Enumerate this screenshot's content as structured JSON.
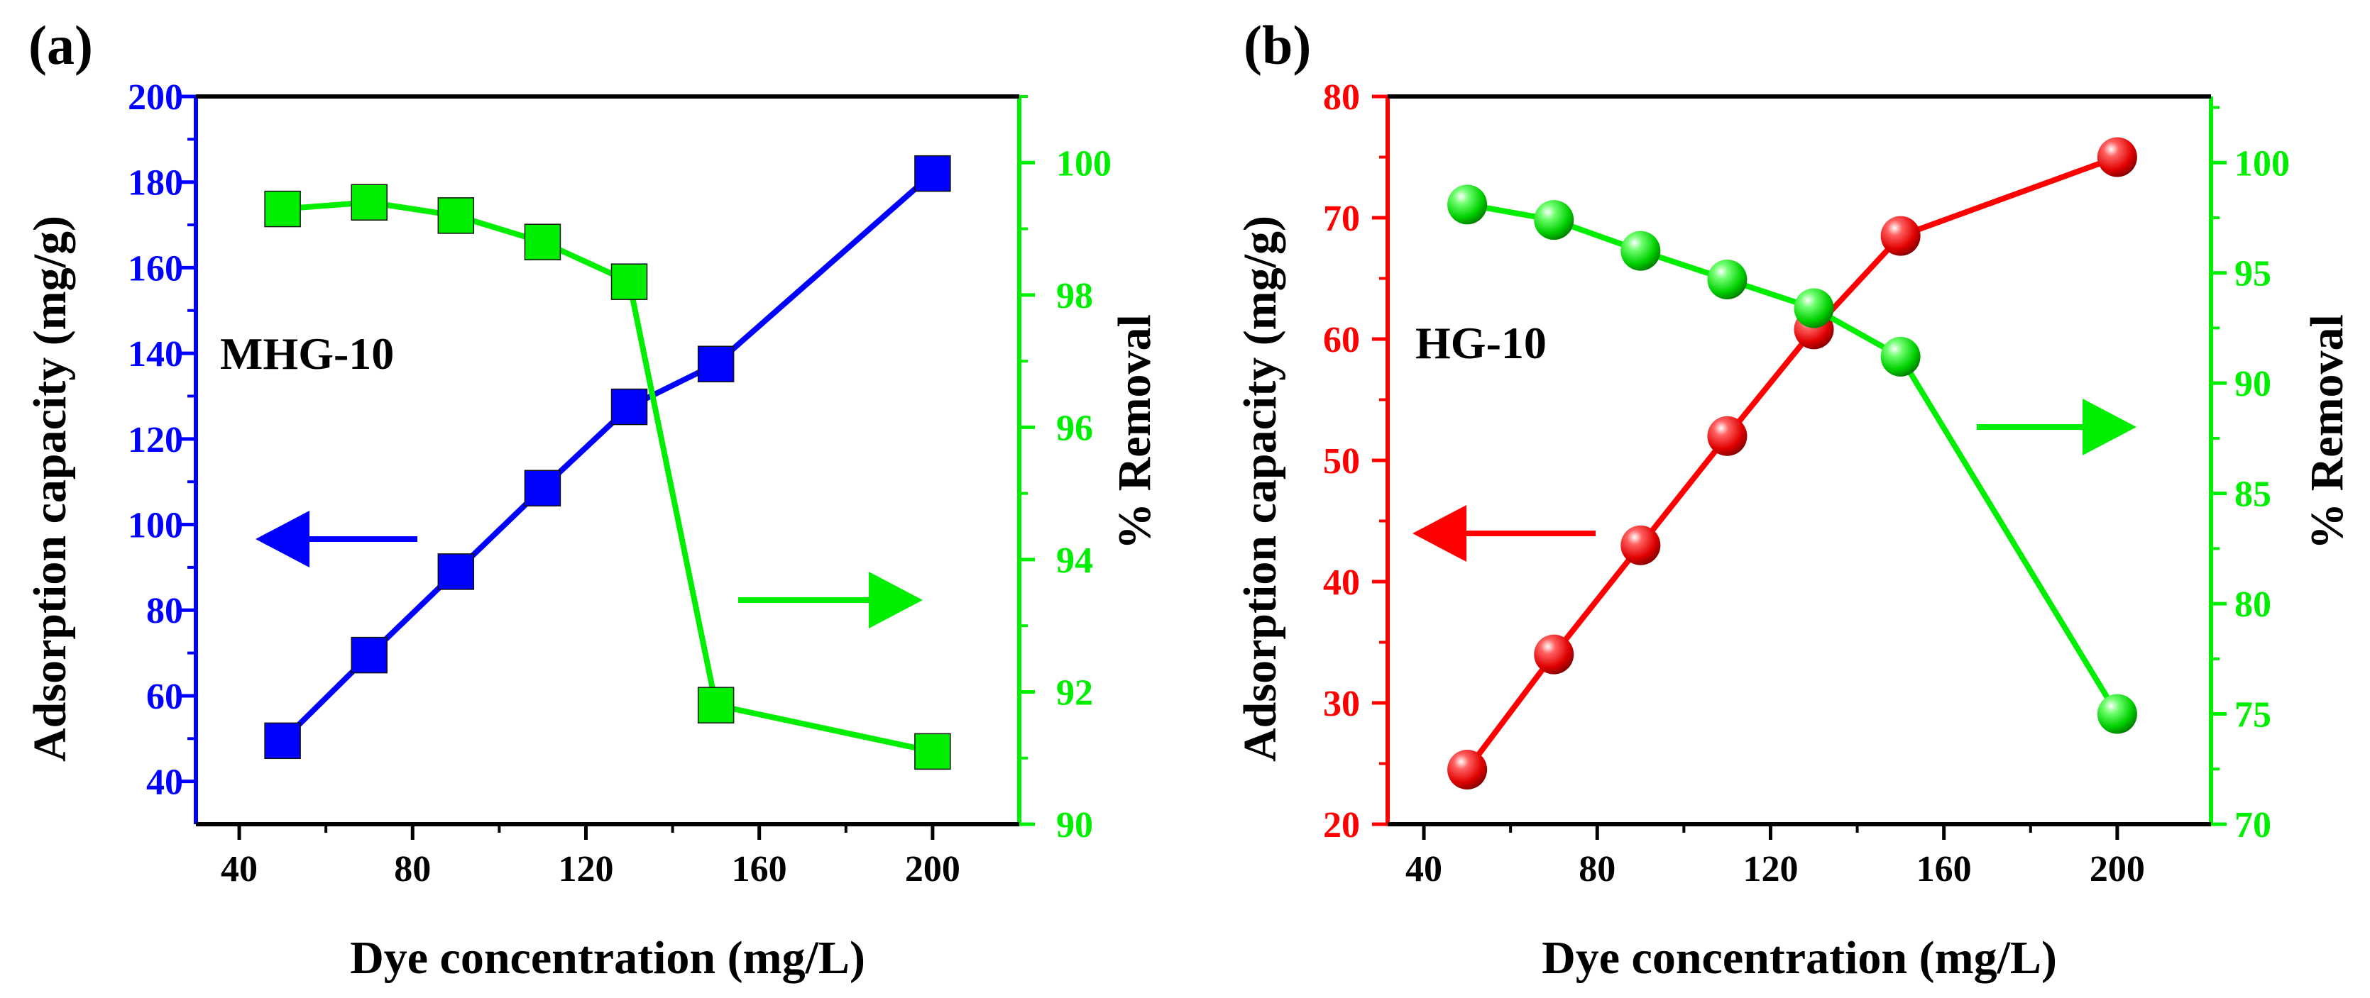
{
  "chart_data": [
    {
      "panel": "(a)",
      "type": "line",
      "annotation": "MHG-10",
      "xlabel": "Dye concentration (mg/L)",
      "xlim": [
        30,
        220
      ],
      "xticks": [
        40,
        80,
        120,
        160,
        200
      ],
      "left_axis": {
        "label": "Adsorption capacity (mg/g)",
        "ylim": [
          30,
          200
        ],
        "ticks": [
          40,
          60,
          80,
          100,
          120,
          140,
          160,
          180,
          200
        ],
        "color": "#0000ff"
      },
      "right_axis": {
        "label": "% Removal",
        "ylim": [
          90,
          101
        ],
        "ticks": [
          90,
          92,
          94,
          96,
          98,
          100
        ],
        "color": "#00ee00"
      },
      "series": [
        {
          "name": "Adsorption capacity",
          "axis": "left",
          "marker": "square",
          "color": "#0000ff",
          "x": [
            50,
            70,
            90,
            110,
            130,
            150,
            200
          ],
          "values": [
            49.5,
            69.5,
            89,
            108.5,
            127.5,
            137.5,
            182
          ]
        },
        {
          "name": "% Removal",
          "axis": "right",
          "marker": "square",
          "color": "#00ee00",
          "x": [
            50,
            70,
            90,
            110,
            130,
            150,
            200
          ],
          "values": [
            99.3,
            99.4,
            99.2,
            98.8,
            98.2,
            91.8,
            91.1
          ]
        }
      ],
      "arrows": [
        {
          "points_to": "left",
          "color": "#0000ff"
        },
        {
          "points_to": "right",
          "color": "#00ee00"
        }
      ]
    },
    {
      "panel": "(b)",
      "type": "line",
      "annotation": "HG-10",
      "xlabel": "Dye concentration (mg/L)",
      "xlim": [
        30,
        220
      ],
      "xticks": [
        40,
        80,
        120,
        160,
        200
      ],
      "left_axis": {
        "label": "Adsorption capacity (mg/g)",
        "ylim": [
          20,
          80
        ],
        "ticks": [
          20,
          30,
          40,
          50,
          60,
          70,
          80
        ],
        "color": "#ff0000"
      },
      "right_axis": {
        "label": "% Removal",
        "ylim": [
          70,
          103
        ],
        "ticks": [
          70,
          75,
          80,
          85,
          90,
          95,
          100
        ],
        "color": "#00ee00"
      },
      "series": [
        {
          "name": "Adsorption capacity",
          "axis": "left",
          "marker": "sphere",
          "color": "#ff0000",
          "x": [
            50,
            70,
            90,
            110,
            130,
            150,
            200
          ],
          "values": [
            24.5,
            34,
            43,
            52,
            60.8,
            68.5,
            75
          ]
        },
        {
          "name": "% Removal",
          "axis": "right",
          "marker": "sphere",
          "color": "#00ee00",
          "x": [
            50,
            70,
            90,
            110,
            130,
            150,
            200
          ],
          "values": [
            98.1,
            97.4,
            96,
            94.7,
            93.4,
            91.2,
            75
          ]
        }
      ],
      "arrows": [
        {
          "points_to": "left",
          "color": "#ff0000"
        },
        {
          "points_to": "right",
          "color": "#00ee00"
        }
      ]
    }
  ]
}
